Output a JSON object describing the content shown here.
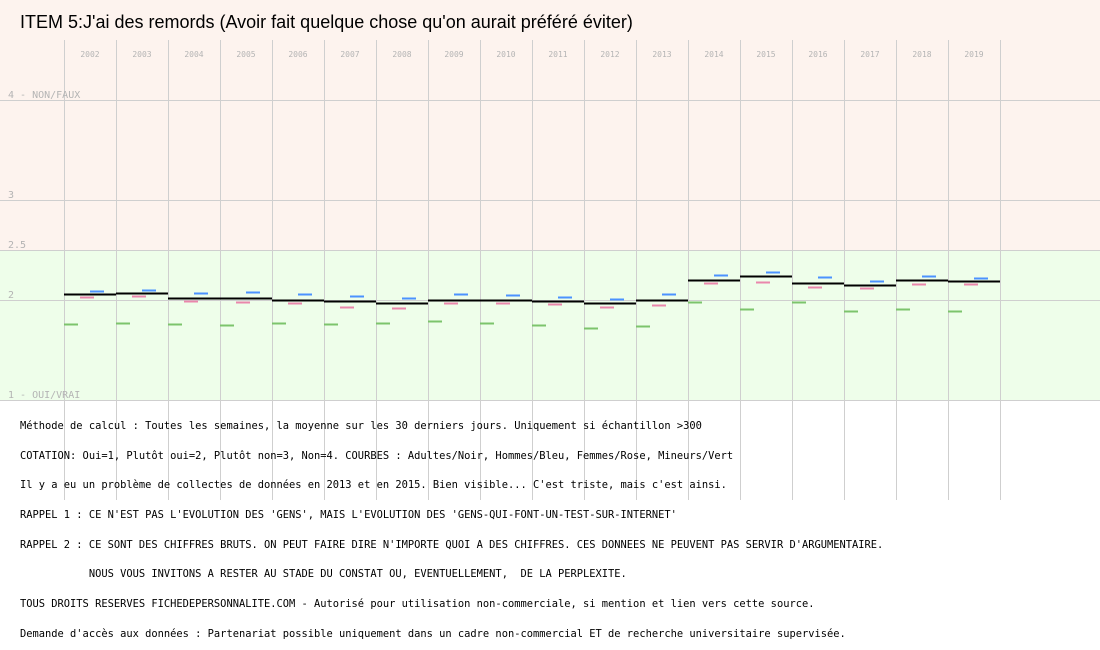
{
  "title": "ITEM 5:J'ai des remords (Avoir fait quelque chose qu'on aurait préféré éviter)",
  "notes": [
    "Méthode de calcul : Toutes les semaines, la moyenne sur les 30 derniers jours. Uniquement si échantillon >300",
    "COTATION: Oui=1, Plutôt oui=2, Plutôt non=3, Non=4. COURBES : Adultes/Noir, Hommes/Bleu, Femmes/Rose, Mineurs/Vert",
    "Il y a eu un problème de collectes de données en 2013 et en 2015. Bien visible... C'est triste, mais c'est ainsi.",
    "RAPPEL 1 : CE N'EST PAS L'EVOLUTION DES 'GENS', MAIS L'EVOLUTION DES 'GENS-QUI-FONT-UN-TEST-SUR-INTERNET'",
    "RAPPEL 2 : CE SONT DES CHIFFRES BRUTS. ON PEUT FAIRE DIRE N'IMPORTE QUOI A DES CHIFFRES. CES DONNEES NE PEUVENT PAS SERVIR D'ARGUMENTAIRE.",
    "           NOUS VOUS INVITONS A RESTER AU STADE DU CONSTAT OU, EVENTUELLEMENT,  DE LA PERPLEXITE.",
    "TOUS DROITS RESERVES FICHEDEPERSONNALITE.COM - Autorisé pour utilisation non-commerciale, si mention et lien vers cette source.",
    "Demande d'accès aux données : Partenariat possible uniquement dans un cadre non-commercial ET de recherche universitaire supervisée."
  ],
  "chart_data": {
    "type": "line",
    "categories": [
      "2002",
      "2003",
      "2004",
      "2005",
      "2006",
      "2007",
      "2008",
      "2009",
      "2010",
      "2011",
      "2012",
      "2013",
      "2014",
      "2015",
      "2016",
      "2017",
      "2018",
      "2019"
    ],
    "y_ticks": [
      {
        "value": 4,
        "label": "4 - NON/FAUX"
      },
      {
        "value": 3,
        "label": "3"
      },
      {
        "value": 2.5,
        "label": "2.5"
      },
      {
        "value": 2,
        "label": "2"
      },
      {
        "value": 1,
        "label": "1 - OUI/VRAI"
      }
    ],
    "ylim": [
      1,
      4
    ],
    "bands": [
      {
        "from": 2.5,
        "to": 4,
        "color": "#fdf3ee"
      },
      {
        "from": 1,
        "to": 2.5,
        "color": "#eefeea"
      }
    ],
    "grid": true,
    "series": [
      {
        "name": "Adultes",
        "color": "#000000",
        "values": [
          2.06,
          2.07,
          2.02,
          2.02,
          2.0,
          1.99,
          1.97,
          2.0,
          2.0,
          1.99,
          1.97,
          2.0,
          2.2,
          2.24,
          2.17,
          2.15,
          2.2,
          2.19
        ]
      },
      {
        "name": "Hommes",
        "color": "#4b92ff",
        "values": [
          2.09,
          2.1,
          2.07,
          2.08,
          2.06,
          2.04,
          2.02,
          2.06,
          2.05,
          2.03,
          2.01,
          2.06,
          2.25,
          2.28,
          2.23,
          2.19,
          2.24,
          2.22
        ]
      },
      {
        "name": "Femmes",
        "color": "#e987ac",
        "values": [
          2.03,
          2.04,
          1.99,
          1.98,
          1.97,
          1.93,
          1.92,
          1.97,
          1.97,
          1.96,
          1.93,
          1.95,
          2.17,
          2.18,
          2.13,
          2.12,
          2.16,
          2.16
        ]
      },
      {
        "name": "Mineurs",
        "color": "#7cc46c",
        "values": [
          1.76,
          1.77,
          1.76,
          1.75,
          1.77,
          1.76,
          1.77,
          1.79,
          1.77,
          1.75,
          1.72,
          1.74,
          1.98,
          1.91,
          1.98,
          1.89,
          1.91,
          1.89
        ]
      }
    ]
  }
}
